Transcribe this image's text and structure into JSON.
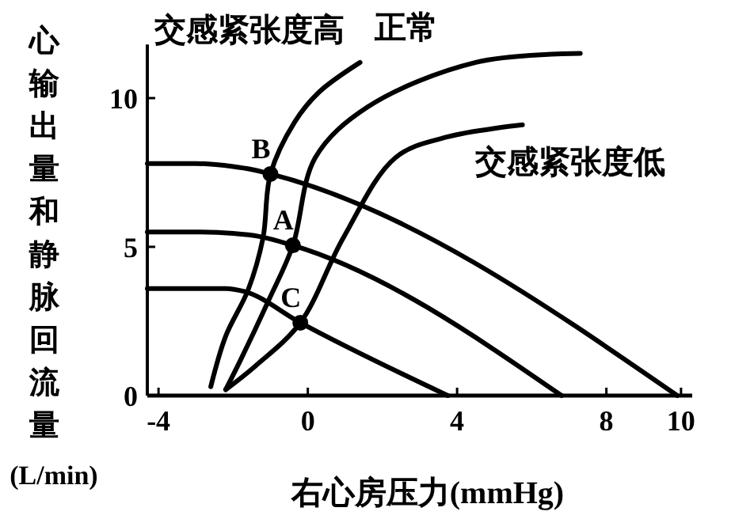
{
  "chart_data": {
    "type": "line",
    "xlabel": "右心房压力(mmHg)",
    "ylabel": "心输出量和静脉回流量(L/min)",
    "xlim": [
      -4.3,
      10.3
    ],
    "xticks": [
      -4,
      0,
      4,
      8,
      10
    ],
    "ylim": [
      0,
      11.8
    ],
    "yticks": [
      0,
      5,
      10
    ],
    "grid": false,
    "marker": "none",
    "line_style": "solid",
    "series": [
      {
        "color": "#000000",
        "x": [
          -4.3,
          -3,
          -2,
          -1.5,
          -1,
          9.9
        ],
        "values": [
          7.8,
          7.8,
          7.7,
          7.6,
          7.45,
          0
        ]
      },
      {
        "color": "#000000",
        "x": [
          -4.3,
          -3,
          -2,
          -1.3,
          -0.4,
          6.8
        ],
        "values": [
          5.5,
          5.5,
          5.45,
          5.35,
          5.05,
          0
        ]
      },
      {
        "color": "#000000",
        "x": [
          -4.3,
          -3,
          -2.2,
          -1.7,
          -0.2,
          3.75
        ],
        "values": [
          3.6,
          3.6,
          3.6,
          3.5,
          2.45,
          0
        ]
      },
      {
        "name": "交感紧张度高",
        "color": "#000000",
        "x": [
          -2.6,
          -2.2,
          -1.6,
          -1.2,
          -1,
          -0.35,
          0.3,
          1.4
        ],
        "values": [
          0.3,
          2,
          3.55,
          5.3,
          7.45,
          9.2,
          10.2,
          11.2
        ]
      },
      {
        "name": "正常",
        "color": "#000000",
        "x": [
          -2.2,
          -1.8,
          -1.05,
          -0.4,
          0.2,
          1.6,
          4.5,
          7.3
        ],
        "values": [
          0.2,
          1.2,
          3.2,
          5.05,
          8.0,
          9.7,
          11.2,
          11.5
        ]
      },
      {
        "name": "交感紧张度低",
        "color": "#000000",
        "x": [
          -2.2,
          -1.4,
          -0.2,
          0.95,
          2.35,
          3.75,
          5.75
        ],
        "values": [
          0.2,
          1.0,
          2.45,
          5.3,
          8.0,
          8.7,
          9.1
        ]
      }
    ],
    "annotations": [
      {
        "text": "B",
        "x": -1,
        "y": 7.45
      },
      {
        "text": "A",
        "x": -0.4,
        "y": 5.05
      },
      {
        "text": "C",
        "x": -0.2,
        "y": 2.45
      }
    ]
  }
}
